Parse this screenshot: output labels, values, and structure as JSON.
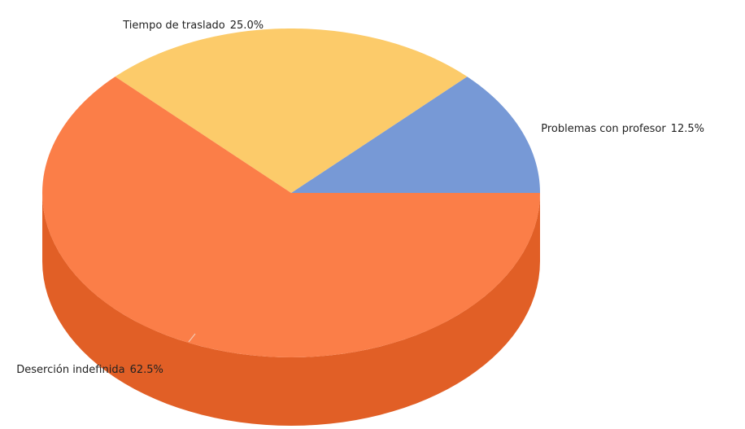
{
  "chart_data": {
    "type": "pie",
    "title": "",
    "slices": [
      {
        "name": "Problemas con profesor",
        "value": 12.5,
        "value_label": "12.5%",
        "color": "#7799D6",
        "side_color": "#5C7AB6"
      },
      {
        "name": "Tiempo de traslado",
        "value": 25.0,
        "value_label": "25.0%",
        "color": "#FCCB6A",
        "side_color": "#E0AE4E"
      },
      {
        "name": "Deserción indefinida",
        "value": 62.5,
        "value_label": "62.5%",
        "color": "#FB7E48",
        "side_color": "#E15F26"
      }
    ],
    "three_d": true,
    "legend": "none",
    "labels": "outside"
  }
}
